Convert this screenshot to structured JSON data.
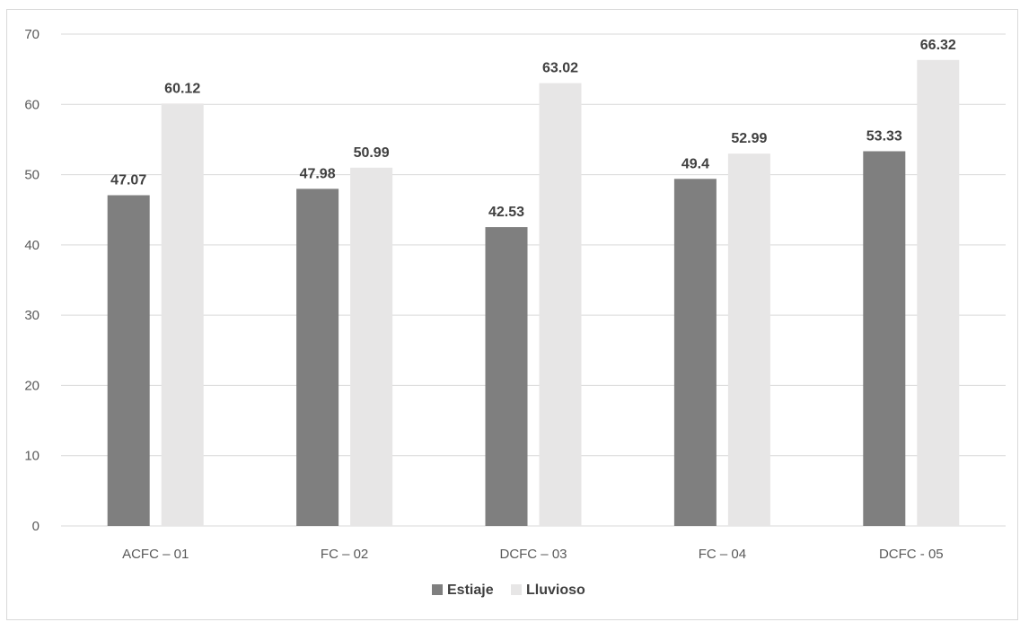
{
  "chart_data": {
    "type": "bar",
    "categories": [
      "ACFC – 01",
      "FC – 02",
      "DCFC – 03",
      "FC – 04",
      "DCFC - 05"
    ],
    "series": [
      {
        "name": "Estiaje",
        "values": [
          47.07,
          47.98,
          42.53,
          49.4,
          53.33
        ],
        "color": "#7f7f7f"
      },
      {
        "name": "Lluvioso",
        "values": [
          60.12,
          50.99,
          63.02,
          52.99,
          66.32
        ],
        "color": "#e7e6e6"
      }
    ],
    "data_labels": {
      "Estiaje": [
        "47.07",
        "47.98",
        "42.53",
        "49.4",
        "53.33"
      ],
      "Lluvioso": [
        "60.12",
        "50.99",
        "63.02",
        "52.99",
        "66.32"
      ]
    },
    "yticks": [
      "0",
      "10",
      "20",
      "30",
      "40",
      "50",
      "60",
      "70"
    ],
    "ylim": [
      0,
      70
    ],
    "grid": true,
    "legend_position": "bottom",
    "gridline_color": "#d9d9d9"
  }
}
